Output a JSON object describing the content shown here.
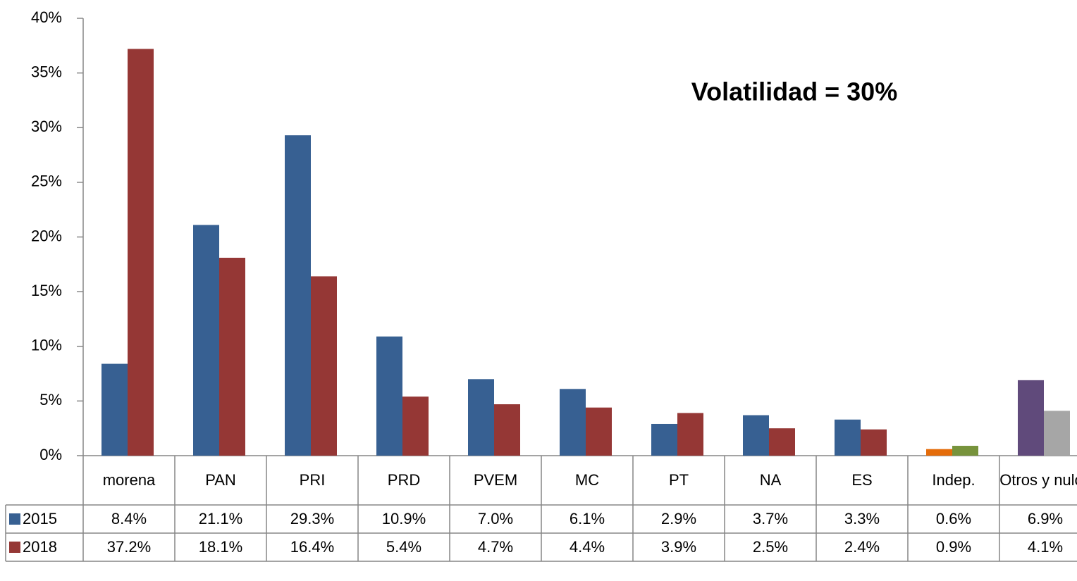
{
  "chart_data": {
    "type": "bar",
    "annotation": "Volatilidad = 30%",
    "categories": [
      "morena",
      "PAN",
      "PRI",
      "PRD",
      "PVEM",
      "MC",
      "PT",
      "NA",
      "ES",
      "Indep.",
      "Otros y nulos"
    ],
    "series": [
      {
        "name": "2015",
        "color": "#376092",
        "colors": [
          "#376092",
          "#376092",
          "#376092",
          "#376092",
          "#376092",
          "#376092",
          "#376092",
          "#376092",
          "#376092",
          "#e46c0a",
          "#604a7b"
        ],
        "values": [
          8.4,
          21.1,
          29.3,
          10.9,
          7.0,
          6.1,
          2.9,
          3.7,
          3.3,
          0.6,
          6.9
        ],
        "value_labels": [
          "8.4%",
          "21.1%",
          "29.3%",
          "10.9%",
          "7.0%",
          "6.1%",
          "2.9%",
          "3.7%",
          "3.3%",
          "0.6%",
          "6.9%"
        ]
      },
      {
        "name": "2018",
        "color": "#953735",
        "colors": [
          "#953735",
          "#953735",
          "#953735",
          "#953735",
          "#953735",
          "#953735",
          "#953735",
          "#953735",
          "#953735",
          "#77933c",
          "#a6a6a6"
        ],
        "values": [
          37.2,
          18.1,
          16.4,
          5.4,
          4.7,
          4.4,
          3.9,
          2.5,
          2.4,
          0.9,
          4.1
        ],
        "value_labels": [
          "37.2%",
          "18.1%",
          "16.4%",
          "5.4%",
          "4.7%",
          "4.4%",
          "3.9%",
          "2.5%",
          "2.4%",
          "0.9%",
          "4.1%"
        ]
      }
    ],
    "ylim": [
      0,
      40
    ],
    "yticks": [
      {
        "value": 0,
        "label": "0%"
      },
      {
        "value": 5,
        "label": "5%"
      },
      {
        "value": 10,
        "label": "10%"
      },
      {
        "value": 15,
        "label": "15%"
      },
      {
        "value": 20,
        "label": "20%"
      },
      {
        "value": 25,
        "label": "25%"
      },
      {
        "value": 30,
        "label": "30%"
      },
      {
        "value": 35,
        "label": "35%"
      },
      {
        "value": 40,
        "label": "40%"
      }
    ],
    "grid": false
  }
}
